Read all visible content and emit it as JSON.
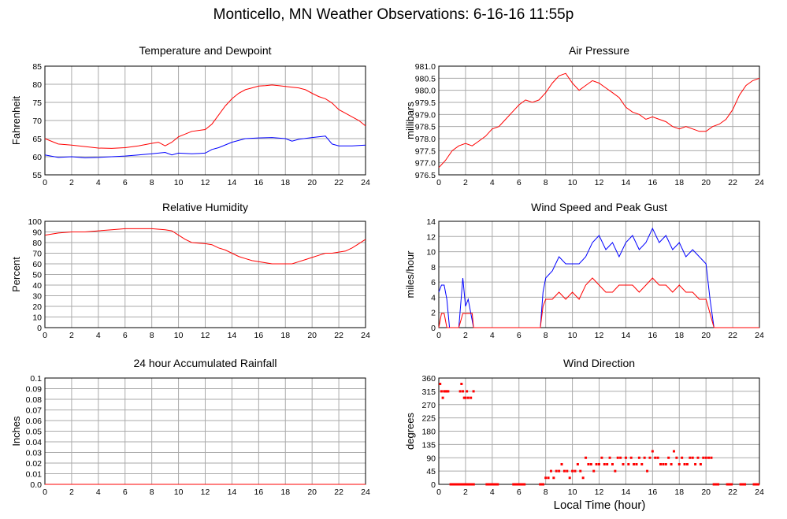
{
  "page_title": "Monticello, MN Weather Observations: 6-16-16 11:55p",
  "x_axis_label": "Local Time (hour)",
  "colors": {
    "primary": "#ff0000",
    "secondary": "#0000ff",
    "grid": "#aaaaaa"
  },
  "chart_data": [
    {
      "id": "temp",
      "type": "line",
      "title": "Temperature and Dewpoint",
      "ylabel": "Fahrenheit",
      "xlim": [
        0,
        24
      ],
      "ylim": [
        55,
        85
      ],
      "xticks": [
        "0",
        "2",
        "4",
        "6",
        "8",
        "10",
        "12",
        "14",
        "16",
        "18",
        "20",
        "22",
        "24"
      ],
      "yticks": [
        "55",
        "60",
        "65",
        "70",
        "75",
        "80",
        "85"
      ],
      "series": [
        {
          "color": "#ff0000",
          "x": [
            0,
            1,
            2,
            3,
            4,
            5,
            6,
            7,
            8,
            8.5,
            9,
            9.5,
            10,
            11,
            12,
            12.5,
            13,
            13.5,
            14,
            14.5,
            15,
            15.5,
            16,
            16.5,
            17,
            17.5,
            18,
            18.5,
            19,
            19.5,
            20,
            20.5,
            21,
            21.5,
            22,
            22.5,
            23,
            23.5,
            24
          ],
          "y": [
            65,
            63.5,
            63.2,
            62.8,
            62.4,
            62.3,
            62.5,
            63,
            63.7,
            64,
            63,
            64,
            65.5,
            67,
            67.5,
            69,
            71.5,
            74,
            76,
            77.5,
            78.5,
            79,
            79.5,
            79.6,
            79.8,
            79.6,
            79.4,
            79.2,
            79,
            78.5,
            77.5,
            76.6,
            76,
            74.8,
            73,
            72,
            71,
            70,
            68.5
          ]
        },
        {
          "color": "#0000ff",
          "x": [
            0,
            1,
            2,
            3,
            4,
            5,
            6,
            7,
            8,
            9,
            9.5,
            10,
            11,
            12,
            12.5,
            13,
            14,
            15,
            16,
            17,
            18,
            18.5,
            19,
            20,
            21,
            21.5,
            22,
            23,
            24
          ],
          "y": [
            60.5,
            59.8,
            60,
            59.7,
            59.8,
            60,
            60.2,
            60.5,
            60.8,
            61.2,
            60.5,
            61,
            60.8,
            61,
            62,
            62.5,
            64,
            65,
            65.2,
            65.3,
            65,
            64.3,
            64.8,
            65.3,
            65.7,
            63.5,
            63,
            63,
            63.2
          ]
        }
      ]
    },
    {
      "id": "pressure",
      "type": "line",
      "title": "Air Pressure",
      "ylabel": "millibars",
      "xlim": [
        0,
        24
      ],
      "ylim": [
        976.5,
        981.0
      ],
      "xticks": [
        "0",
        "2",
        "4",
        "6",
        "8",
        "10",
        "12",
        "14",
        "16",
        "18",
        "20",
        "22",
        "24"
      ],
      "yticks": [
        "976.5",
        "977.0",
        "977.5",
        "978.0",
        "978.5",
        "979.0",
        "979.5",
        "980.0",
        "980.5",
        "981.0"
      ],
      "series": [
        {
          "color": "#ff0000",
          "x": [
            0,
            0.5,
            1,
            1.5,
            2,
            2.5,
            3,
            3.5,
            4,
            4.5,
            5,
            5.5,
            6,
            6.5,
            7,
            7.5,
            8,
            8.5,
            9,
            9.5,
            10,
            10.5,
            11,
            11.5,
            12,
            12.5,
            13,
            13.5,
            14,
            14.5,
            15,
            15.5,
            16,
            16.5,
            17,
            17.5,
            18,
            18.5,
            19,
            19.5,
            20,
            20.5,
            21,
            21.5,
            22,
            22.5,
            23,
            23.5,
            24
          ],
          "y": [
            976.8,
            977.1,
            977.5,
            977.7,
            977.8,
            977.7,
            977.9,
            978.1,
            978.4,
            978.5,
            978.8,
            979.1,
            979.4,
            979.6,
            979.5,
            979.6,
            979.9,
            980.3,
            980.6,
            980.7,
            980.3,
            980,
            980.2,
            980.4,
            980.3,
            980.1,
            979.9,
            979.7,
            979.3,
            979.1,
            979,
            978.8,
            978.9,
            978.8,
            978.7,
            978.5,
            978.4,
            978.5,
            978.4,
            978.3,
            978.3,
            978.5,
            978.6,
            978.8,
            979.2,
            979.8,
            980.2,
            980.4,
            980.5
          ]
        }
      ]
    },
    {
      "id": "humidity",
      "type": "line",
      "title": "Relative Humidity",
      "ylabel": "Percent",
      "xlim": [
        0,
        24
      ],
      "ylim": [
        0,
        100
      ],
      "xticks": [
        "0",
        "2",
        "4",
        "6",
        "8",
        "10",
        "12",
        "14",
        "16",
        "18",
        "20",
        "22",
        "24"
      ],
      "yticks": [
        "0",
        "10",
        "20",
        "30",
        "40",
        "50",
        "60",
        "70",
        "80",
        "90",
        "100"
      ],
      "series": [
        {
          "color": "#ff0000",
          "x": [
            0,
            0.5,
            1,
            2,
            3,
            4,
            5,
            6,
            7,
            8,
            9,
            9.5,
            10,
            10.5,
            11,
            12,
            12.5,
            13,
            13.5,
            14,
            14.5,
            15,
            15.5,
            16,
            16.5,
            17,
            17.5,
            18,
            18.5,
            19,
            19.5,
            20,
            20.5,
            21,
            21.5,
            22,
            22.5,
            23,
            23.5,
            24
          ],
          "y": [
            87,
            88,
            89,
            90,
            90,
            91,
            92,
            93,
            93,
            93,
            92,
            91,
            87,
            83,
            80,
            79,
            78,
            75,
            73,
            70,
            67,
            65,
            63,
            62,
            61,
            60,
            60,
            60,
            60,
            62,
            64,
            66,
            68,
            70,
            70,
            71,
            72,
            75,
            79,
            83
          ]
        }
      ]
    },
    {
      "id": "wind",
      "type": "line",
      "title": "Wind Speed and Peak Gust",
      "ylabel": "miles/hour",
      "xlim": [
        0,
        24
      ],
      "ylim": [
        0,
        15
      ],
      "xticks": [
        "0",
        "2",
        "4",
        "6",
        "8",
        "10",
        "12",
        "14",
        "16",
        "18",
        "20",
        "22",
        "24"
      ],
      "yticks": [
        "0",
        "2",
        "4",
        "6",
        "8",
        "10",
        "12",
        "14"
      ],
      "series": [
        {
          "color": "#0000ff",
          "x": [
            0,
            0.2,
            0.4,
            0.6,
            0.8,
            1,
            1.2,
            1.5,
            1.8,
            2,
            2.2,
            2.4,
            2.6,
            2.8,
            3,
            4,
            5,
            6,
            7,
            7.6,
            7.8,
            8,
            8.5,
            9,
            9.5,
            10,
            10.5,
            11,
            11.5,
            12,
            12.5,
            13,
            13.5,
            14,
            14.5,
            15,
            15.5,
            16,
            16.5,
            17,
            17.5,
            18,
            18.5,
            19,
            19.5,
            20,
            20.3,
            20.6,
            21,
            22,
            23,
            24
          ],
          "y": [
            5,
            6,
            6,
            4,
            0,
            0,
            0,
            0,
            7,
            3,
            4,
            2,
            0,
            0,
            0,
            0,
            0,
            0,
            0,
            0,
            5,
            7,
            8,
            10,
            9,
            9,
            9,
            10,
            12,
            13,
            11,
            12,
            10,
            12,
            13,
            11,
            12,
            14,
            12,
            13,
            11,
            12,
            10,
            11,
            10,
            9,
            4,
            0,
            0,
            0,
            0,
            0
          ]
        },
        {
          "color": "#ff0000",
          "x": [
            0,
            0.2,
            0.4,
            0.6,
            0.8,
            1,
            1.5,
            1.8,
            2,
            2.5,
            2.6,
            2.8,
            3,
            4,
            5,
            6,
            7,
            7.6,
            7.8,
            8,
            8.5,
            9,
            9.5,
            10,
            10.5,
            11,
            11.5,
            12,
            12.5,
            13,
            13.5,
            14,
            14.5,
            15,
            15.5,
            16,
            16.5,
            17,
            17.5,
            18,
            18.5,
            19,
            19.5,
            20,
            20.3,
            20.6,
            21,
            22,
            23,
            24
          ],
          "y": [
            0,
            2,
            2,
            0,
            0,
            0,
            0,
            2,
            2,
            2,
            0,
            0,
            0,
            0,
            0,
            0,
            0,
            0,
            3,
            4,
            4,
            5,
            4,
            5,
            4,
            6,
            7,
            6,
            5,
            5,
            6,
            6,
            6,
            5,
            6,
            7,
            6,
            6,
            5,
            6,
            5,
            5,
            4,
            4,
            2,
            0,
            0,
            0,
            0,
            0
          ]
        }
      ]
    },
    {
      "id": "rain",
      "type": "line",
      "title": "24 hour Accumulated Rainfall",
      "ylabel": "Inches",
      "xlim": [
        0,
        24
      ],
      "ylim": [
        0,
        0.1
      ],
      "xticks": [
        "0",
        "2",
        "4",
        "6",
        "8",
        "10",
        "12",
        "14",
        "16",
        "18",
        "20",
        "22",
        "24"
      ],
      "yticks": [
        "0.0",
        "0.01",
        "0.02",
        "0.03",
        "0.04",
        "0.05",
        "0.06",
        "0.07",
        "0.08",
        "0.09",
        "0.1"
      ],
      "series": [
        {
          "color": "#ff0000",
          "x": [
            0,
            24
          ],
          "y": [
            0,
            0
          ]
        }
      ]
    },
    {
      "id": "direction",
      "type": "scatter",
      "title": "Wind Direction",
      "ylabel": "degrees",
      "xlim": [
        0,
        24
      ],
      "ylim": [
        0,
        360
      ],
      "xticks": [
        "0",
        "2",
        "4",
        "6",
        "8",
        "10",
        "12",
        "14",
        "16",
        "18",
        "20",
        "22",
        "24"
      ],
      "yticks": [
        "0",
        "45",
        "90",
        "135",
        "180",
        "225",
        "270",
        "315",
        "360"
      ],
      "series": [
        {
          "color": "#ff0000",
          "x": [
            0.1,
            0.2,
            0.3,
            0.4,
            0.5,
            0.6,
            0.7,
            1.6,
            1.7,
            1.8,
            1.9,
            2.0,
            2.1,
            2.2,
            2.4,
            2.6,
            8,
            8.2,
            8.4,
            8.6,
            8.8,
            9,
            9.2,
            9.4,
            9.6,
            9.8,
            10,
            10.2,
            10.4,
            10.6,
            10.8,
            11,
            11.2,
            11.4,
            11.6,
            11.8,
            12,
            12.2,
            12.4,
            12.6,
            12.8,
            13,
            13.2,
            13.4,
            13.6,
            13.8,
            14,
            14.2,
            14.4,
            14.6,
            14.8,
            15,
            15.2,
            15.4,
            15.6,
            15.8,
            16,
            16.2,
            16.4,
            16.6,
            16.8,
            17,
            17.2,
            17.4,
            17.6,
            17.8,
            18,
            18.2,
            18.4,
            18.6,
            18.8,
            19,
            19.2,
            19.4,
            19.6,
            19.8,
            20,
            20.2,
            20.4
          ],
          "y": [
            340,
            315,
            293,
            315,
            315,
            315,
            315,
            315,
            340,
            315,
            293,
            293,
            315,
            293,
            293,
            315,
            22,
            22,
            45,
            22,
            45,
            45,
            68,
            45,
            45,
            22,
            45,
            45,
            68,
            45,
            22,
            90,
            68,
            68,
            45,
            68,
            68,
            90,
            68,
            68,
            90,
            68,
            45,
            90,
            90,
            68,
            90,
            68,
            90,
            68,
            68,
            90,
            68,
            90,
            45,
            90,
            112,
            90,
            90,
            68,
            68,
            68,
            90,
            68,
            112,
            90,
            68,
            90,
            68,
            68,
            90,
            90,
            68,
            90,
            68,
            90,
            90,
            90,
            90
          ]
        },
        {
          "color": "#ff0000",
          "x": [
            0.8,
            2.7,
            3.5,
            4.5,
            5.5,
            6.5,
            7.5,
            7.9,
            20.5,
            21,
            21.5,
            22,
            22.5,
            23,
            23.5,
            24
          ],
          "y": [
            0,
            0,
            0,
            0,
            0,
            0,
            0,
            0,
            0,
            0,
            0,
            0,
            0,
            0,
            0,
            0
          ],
          "baseline": true
        }
      ]
    }
  ]
}
